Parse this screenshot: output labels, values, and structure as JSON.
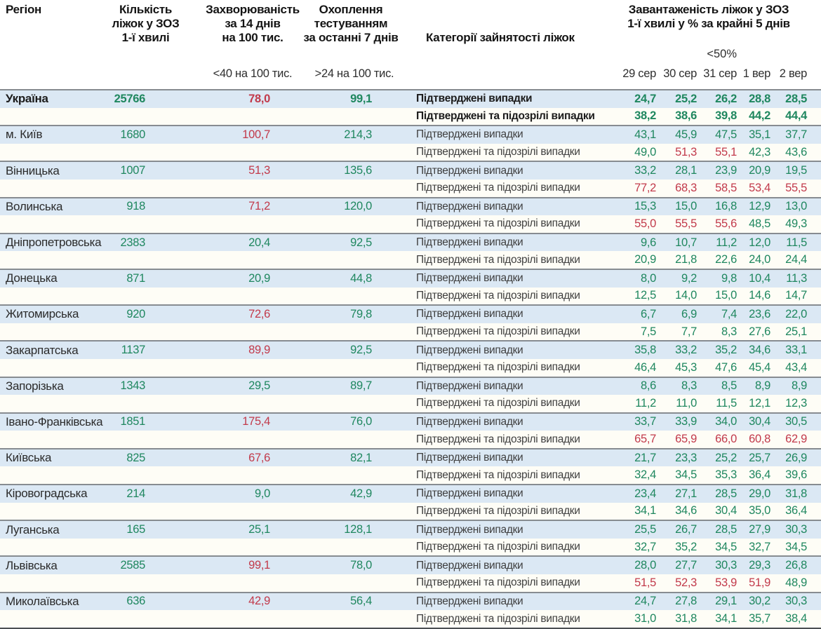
{
  "header": {
    "region": "Регіон",
    "beds": "Кількість\nліжок у ЗОЗ\n1-ї хвилі",
    "incidence": "Захворюваність\nза 14 днів\nна 100 тис.",
    "testing": "Охоплення\nтестуванням\nза останні 7 днів",
    "category": "Категорії зайнятості ліжок",
    "occupancy": "Завантаженість ліжок у ЗОЗ\n1-ї хвилі у % за крайні 5 днів",
    "incidence_threshold": "<40 на 100 тис.",
    "testing_threshold": ">24 на 100 тис.",
    "occupancy_threshold": "<50%",
    "dates": [
      "29 сер",
      "30 сер",
      "31 сер",
      "1 вер",
      "2 вер"
    ]
  },
  "category_labels": {
    "confirmed": "Підтверджені випадки",
    "confirmed_suspected": "Підтверджені та підозрілі випадки"
  },
  "colors": {
    "green": "#1f875f",
    "red": "#c23a4b",
    "row_blue": "#dbe8f4",
    "row_cream": "#fefdf6"
  },
  "thresholds": {
    "incidence_red_above": 40,
    "testing_green_at_or_above": 24,
    "occupancy_red_at_or_above": 50
  },
  "rows": [
    {
      "region": "Україна",
      "bold": true,
      "beds": "25766",
      "incidence": "78,0",
      "testing": "99,1",
      "confirmed": [
        "24,7",
        "25,2",
        "26,2",
        "28,8",
        "28,5"
      ],
      "suspected": [
        "38,2",
        "38,6",
        "39,8",
        "44,2",
        "44,4"
      ]
    },
    {
      "region": "м. Київ",
      "bold": false,
      "beds": "1680",
      "incidence": "100,7",
      "testing": "214,3",
      "confirmed": [
        "43,1",
        "45,9",
        "47,5",
        "35,1",
        "37,7"
      ],
      "suspected": [
        "49,0",
        "51,3",
        "55,1",
        "42,3",
        "43,6"
      ]
    },
    {
      "region": "Вінницька",
      "bold": false,
      "beds": "1007",
      "incidence": "51,3",
      "testing": "135,6",
      "confirmed": [
        "33,2",
        "28,1",
        "23,9",
        "20,9",
        "19,5"
      ],
      "suspected": [
        "77,2",
        "68,3",
        "58,5",
        "53,4",
        "55,5"
      ]
    },
    {
      "region": "Волинська",
      "bold": false,
      "beds": "918",
      "incidence": "71,2",
      "testing": "120,0",
      "confirmed": [
        "15,3",
        "15,0",
        "16,8",
        "12,9",
        "13,0"
      ],
      "suspected": [
        "55,0",
        "55,5",
        "55,6",
        "48,5",
        "49,3"
      ]
    },
    {
      "region": "Дніпропетровська",
      "bold": false,
      "beds": "2383",
      "incidence": "20,4",
      "testing": "92,5",
      "confirmed": [
        "9,6",
        "10,7",
        "11,2",
        "12,0",
        "11,5"
      ],
      "suspected": [
        "20,9",
        "21,8",
        "22,6",
        "24,0",
        "24,4"
      ]
    },
    {
      "region": "Донецька",
      "bold": false,
      "beds": "871",
      "incidence": "20,9",
      "testing": "44,8",
      "confirmed": [
        "8,0",
        "9,2",
        "9,8",
        "10,4",
        "11,3"
      ],
      "suspected": [
        "12,5",
        "14,0",
        "15,0",
        "14,6",
        "14,7"
      ]
    },
    {
      "region": "Житомирська",
      "bold": false,
      "beds": "920",
      "incidence": "72,6",
      "testing": "79,8",
      "confirmed": [
        "6,7",
        "6,9",
        "7,4",
        "23,6",
        "22,0"
      ],
      "suspected": [
        "7,5",
        "7,7",
        "8,3",
        "27,6",
        "25,1"
      ]
    },
    {
      "region": "Закарпатська",
      "bold": false,
      "beds": "1137",
      "incidence": "89,9",
      "testing": "92,5",
      "confirmed": [
        "35,8",
        "33,2",
        "35,2",
        "34,6",
        "33,1"
      ],
      "suspected": [
        "46,4",
        "45,3",
        "47,6",
        "45,4",
        "43,4"
      ]
    },
    {
      "region": "Запорізька",
      "bold": false,
      "beds": "1343",
      "incidence": "29,5",
      "testing": "89,7",
      "confirmed": [
        "8,6",
        "8,3",
        "8,5",
        "8,9",
        "8,9"
      ],
      "suspected": [
        "11,2",
        "11,0",
        "11,5",
        "12,1",
        "12,3"
      ]
    },
    {
      "region": "Івано-Франківська",
      "bold": false,
      "beds": "1851",
      "incidence": "175,4",
      "testing": "76,0",
      "confirmed": [
        "33,7",
        "33,9",
        "34,0",
        "30,4",
        "30,5"
      ],
      "suspected": [
        "65,7",
        "65,9",
        "66,0",
        "60,8",
        "62,9"
      ]
    },
    {
      "region": "Київська",
      "bold": false,
      "beds": "825",
      "incidence": "67,6",
      "testing": "82,1",
      "confirmed": [
        "21,7",
        "23,3",
        "25,2",
        "25,7",
        "26,9"
      ],
      "suspected": [
        "32,4",
        "34,5",
        "35,3",
        "36,4",
        "39,6"
      ]
    },
    {
      "region": "Кіровоградська",
      "bold": false,
      "beds": "214",
      "incidence": "9,0",
      "testing": "42,9",
      "confirmed": [
        "23,4",
        "27,1",
        "28,5",
        "29,0",
        "31,8"
      ],
      "suspected": [
        "34,1",
        "34,6",
        "30,4",
        "35,0",
        "36,4"
      ]
    },
    {
      "region": "Луганська",
      "bold": false,
      "beds": "165",
      "incidence": "25,1",
      "testing": "128,1",
      "confirmed": [
        "25,5",
        "26,7",
        "28,5",
        "27,9",
        "30,3"
      ],
      "suspected": [
        "32,7",
        "35,2",
        "34,5",
        "32,7",
        "34,5"
      ]
    },
    {
      "region": "Львівська",
      "bold": false,
      "beds": "2585",
      "incidence": "99,1",
      "testing": "78,0",
      "confirmed": [
        "28,0",
        "27,7",
        "30,3",
        "29,3",
        "26,8"
      ],
      "suspected": [
        "51,5",
        "52,3",
        "53,9",
        "51,9",
        "48,9"
      ]
    },
    {
      "region": "Миколаївська",
      "bold": false,
      "beds": "636",
      "incidence": "42,9",
      "testing": "56,4",
      "confirmed": [
        "24,7",
        "27,8",
        "29,1",
        "30,2",
        "30,3"
      ],
      "suspected": [
        "31,0",
        "31,8",
        "34,1",
        "35,7",
        "38,4"
      ]
    }
  ]
}
